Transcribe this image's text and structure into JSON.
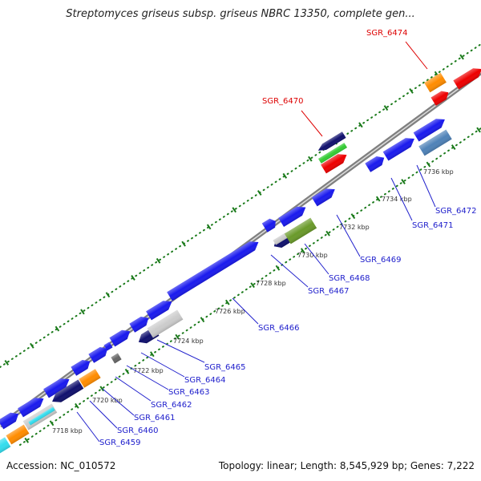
{
  "title": "Streptomyces griseus subsp. griseus NBRC 13350, complete gen...",
  "footer": {
    "accession": "Accession: NC_010572",
    "summary": "Topology: linear; Length: 8,545,929 bp; Genes: 7,222"
  },
  "kbp_labels": [
    "7718 kbp",
    "7720 kbp",
    "7722 kbp",
    "7724 kbp",
    "7726 kbp",
    "7728 kbp",
    "7730 kbp",
    "7732 kbp",
    "7734 kbp",
    "7736 kbp"
  ],
  "highlighted_genes": [
    "SGR_6470",
    "SGR_6474"
  ],
  "gene_labels": [
    "SGR_6459",
    "SGR_6460",
    "SGR_6461",
    "SGR_6462",
    "SGR_6463",
    "SGR_6464",
    "SGR_6465",
    "SGR_6466",
    "SGR_6467",
    "SGR_6468",
    "SGR_6469",
    "SGR_6471",
    "SGR_6472"
  ],
  "colors": {
    "forward_gene": "#1a1aee",
    "highlight": "#ee0000",
    "orange": "#ff8c00",
    "navy": "#10106e",
    "green": "#33cc33",
    "olive": "#6a9a2a",
    "steel_blue": "#4f82b8",
    "cyan": "#33ddee",
    "light_gray": "#cccccc",
    "backbone": "#808080",
    "tick": "#1a7a1a",
    "label_blue": "#2020cc",
    "label_red": "#dd0000"
  }
}
